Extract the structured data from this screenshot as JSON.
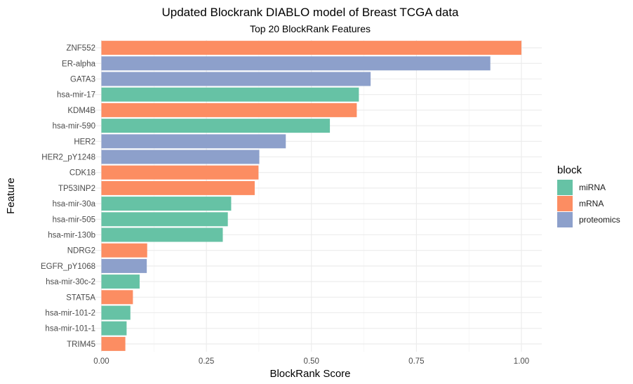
{
  "chart_data": {
    "type": "bar",
    "orientation": "horizontal",
    "title": "Updated Blockrank DIABLO model of Breast TCGA data",
    "subtitle": "Top 20 BlockRank Features",
    "xlabel": "BlockRank Score",
    "ylabel": "Feature",
    "xlim": [
      0,
      1.0
    ],
    "xticks": [
      "0.00",
      "0.25",
      "0.50",
      "0.75",
      "1.00"
    ],
    "grid": true,
    "legend": {
      "title": "block",
      "placement": "right",
      "entries": [
        {
          "name": "miRNA",
          "color": "#66C2A5"
        },
        {
          "name": "mRNA",
          "color": "#FC8D62"
        },
        {
          "name": "proteomics",
          "color": "#8DA0CB"
        }
      ]
    },
    "categories": [
      "ZNF552",
      "ER-alpha",
      "GATA3",
      "hsa-mir-17",
      "KDM4B",
      "hsa-mir-590",
      "HER2",
      "HER2_pY1248",
      "CDK18",
      "TP53INP2",
      "hsa-mir-30a",
      "hsa-mir-505",
      "hsa-mir-130b",
      "NDRG2",
      "EGFR_pY1068",
      "hsa-mir-30c-2",
      "STAT5A",
      "hsa-mir-101-2",
      "hsa-mir-101-1",
      "TRIM45"
    ],
    "values": [
      1.0,
      0.926,
      0.641,
      0.613,
      0.608,
      0.544,
      0.439,
      0.376,
      0.374,
      0.365,
      0.309,
      0.301,
      0.289,
      0.109,
      0.108,
      0.091,
      0.075,
      0.069,
      0.06,
      0.057
    ],
    "blocks": [
      "mRNA",
      "proteomics",
      "proteomics",
      "miRNA",
      "mRNA",
      "miRNA",
      "proteomics",
      "proteomics",
      "mRNA",
      "mRNA",
      "miRNA",
      "miRNA",
      "miRNA",
      "mRNA",
      "proteomics",
      "miRNA",
      "mRNA",
      "miRNA",
      "miRNA",
      "mRNA"
    ]
  }
}
